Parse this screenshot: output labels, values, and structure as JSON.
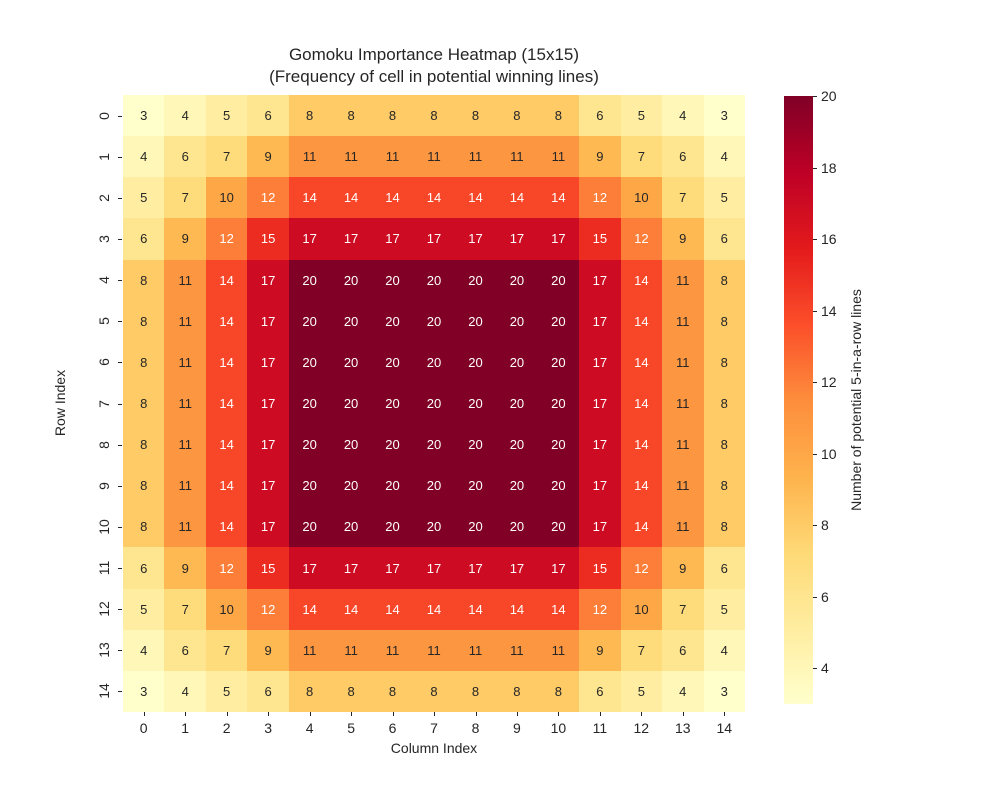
{
  "chart": {
    "title_line1": "Gomoku Importance Heatmap (15x15)",
    "title_line2": "(Frequency of cell in potential winning lines)"
  },
  "chart_data": {
    "type": "heatmap",
    "title": "Gomoku Importance Heatmap (15x15)\n(Frequency of cell in potential winning lines)",
    "xlabel": "Column Index",
    "ylabel": "Row Index",
    "x_labels": [
      "0",
      "1",
      "2",
      "3",
      "4",
      "5",
      "6",
      "7",
      "8",
      "9",
      "10",
      "11",
      "12",
      "13",
      "14"
    ],
    "y_labels": [
      "0",
      "1",
      "2",
      "3",
      "4",
      "5",
      "6",
      "7",
      "8",
      "9",
      "10",
      "11",
      "12",
      "13",
      "14"
    ],
    "values": [
      [
        3,
        4,
        5,
        6,
        8,
        8,
        8,
        8,
        8,
        8,
        8,
        6,
        5,
        4,
        3
      ],
      [
        4,
        6,
        7,
        9,
        11,
        11,
        11,
        11,
        11,
        11,
        11,
        9,
        7,
        6,
        4
      ],
      [
        5,
        7,
        10,
        12,
        14,
        14,
        14,
        14,
        14,
        14,
        14,
        12,
        10,
        7,
        5
      ],
      [
        6,
        9,
        12,
        15,
        17,
        17,
        17,
        17,
        17,
        17,
        17,
        15,
        12,
        9,
        6
      ],
      [
        8,
        11,
        14,
        17,
        20,
        20,
        20,
        20,
        20,
        20,
        20,
        17,
        14,
        11,
        8
      ],
      [
        8,
        11,
        14,
        17,
        20,
        20,
        20,
        20,
        20,
        20,
        20,
        17,
        14,
        11,
        8
      ],
      [
        8,
        11,
        14,
        17,
        20,
        20,
        20,
        20,
        20,
        20,
        20,
        17,
        14,
        11,
        8
      ],
      [
        8,
        11,
        14,
        17,
        20,
        20,
        20,
        20,
        20,
        20,
        20,
        17,
        14,
        11,
        8
      ],
      [
        8,
        11,
        14,
        17,
        20,
        20,
        20,
        20,
        20,
        20,
        20,
        17,
        14,
        11,
        8
      ],
      [
        8,
        11,
        14,
        17,
        20,
        20,
        20,
        20,
        20,
        20,
        20,
        17,
        14,
        11,
        8
      ],
      [
        8,
        11,
        14,
        17,
        20,
        20,
        20,
        20,
        20,
        20,
        20,
        17,
        14,
        11,
        8
      ],
      [
        6,
        9,
        12,
        15,
        17,
        17,
        17,
        17,
        17,
        17,
        17,
        15,
        12,
        9,
        6
      ],
      [
        5,
        7,
        10,
        12,
        14,
        14,
        14,
        14,
        14,
        14,
        14,
        12,
        10,
        7,
        5
      ],
      [
        4,
        6,
        7,
        9,
        11,
        11,
        11,
        11,
        11,
        11,
        11,
        9,
        7,
        6,
        4
      ],
      [
        3,
        4,
        5,
        6,
        8,
        8,
        8,
        8,
        8,
        8,
        8,
        6,
        5,
        4,
        3
      ]
    ],
    "vmin": 3,
    "vmax": 20,
    "colormap": "YlOrRd",
    "grid": false,
    "value_colors": {
      "3": "#ffffcc",
      "4": "#fff7b7",
      "5": "#ffeea1",
      "6": "#fee58f",
      "7": "#fedb7b",
      "8": "#fecb66",
      "9": "#feb952",
      "10": "#fea747",
      "11": "#fd9640",
      "12": "#fd7e38",
      "14": "#f84628",
      "15": "#ec2c21",
      "17": "#cd0b22",
      "20": "#800026"
    },
    "annotation_text": {
      "dark": "#262626",
      "light": "#ffffff",
      "light_threshold": 12
    },
    "colorbar": {
      "label": "Number of potential 5-in-a-row lines",
      "ticks": [
        "4",
        "6",
        "8",
        "10",
        "12",
        "14",
        "16",
        "18",
        "20"
      ],
      "tick_values": [
        4,
        6,
        8,
        10,
        12,
        14,
        16,
        18,
        20
      ],
      "stops_bottom_to_top": [
        "#ffffcc",
        "#ffeda0",
        "#fed976",
        "#feb24c",
        "#fd8d3c",
        "#fc4e2a",
        "#e31a1c",
        "#bd0026",
        "#800026"
      ]
    }
  }
}
